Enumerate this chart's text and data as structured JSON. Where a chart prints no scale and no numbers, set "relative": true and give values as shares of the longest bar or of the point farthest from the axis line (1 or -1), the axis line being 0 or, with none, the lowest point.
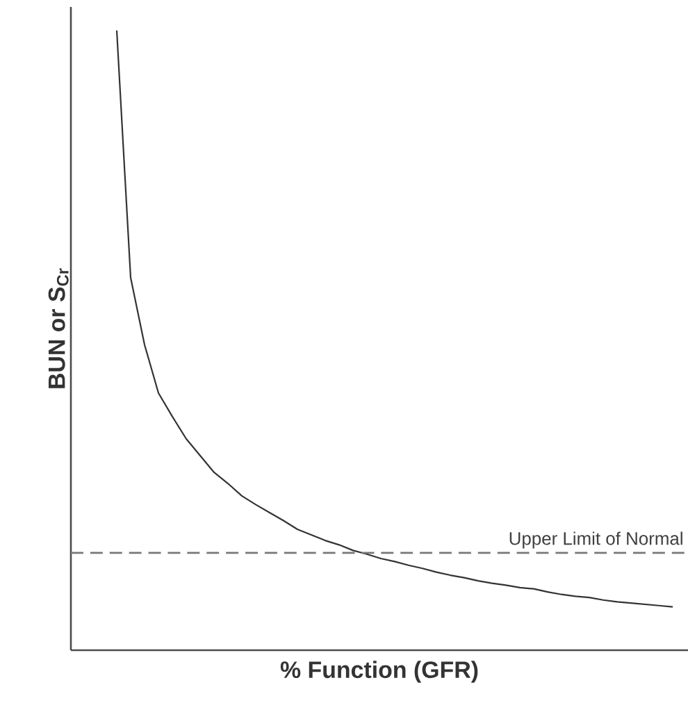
{
  "chart_data": {
    "type": "line",
    "relative": true,
    "xlabel": "% Function (GFR)",
    "ylabel": "BUN or S$_{Cr}$",
    "categories": [
      null,
      null,
      null,
      null,
      null,
      null,
      null,
      null,
      null,
      null,
      null,
      null,
      null,
      null,
      null,
      null,
      null,
      null,
      null,
      null,
      null,
      null,
      null,
      null,
      null,
      null,
      null,
      null,
      null,
      null,
      null,
      null,
      null,
      null,
      null,
      null,
      null,
      null,
      null,
      null,
      null
    ],
    "series": [
      {
        "color": "#333333",
        "values": [
          1,
          0.601,
          0.493,
          0.415,
          0.377,
          0.341,
          0.314,
          0.287,
          0.269,
          0.249,
          0.235,
          0.222,
          0.209,
          0.195,
          0.186,
          0.177,
          0.17,
          0.161,
          0.155,
          0.148,
          0.143,
          0.137,
          0.132,
          0.126,
          0.121,
          0.117,
          0.112,
          0.108,
          0.105,
          0.101,
          0.099,
          0.094,
          0.09,
          0.087,
          0.085,
          0.081,
          0.078,
          0.076,
          0.074,
          0.072,
          0.07
        ]
      }
    ],
    "ref_lines": [
      {
        "axis": "y",
        "value": 0.157,
        "label": "Upper Limit of Normal",
        "color": "#777777",
        "line_style": "dashed"
      }
    ],
    "marker": "none",
    "line_style": "solid"
  }
}
